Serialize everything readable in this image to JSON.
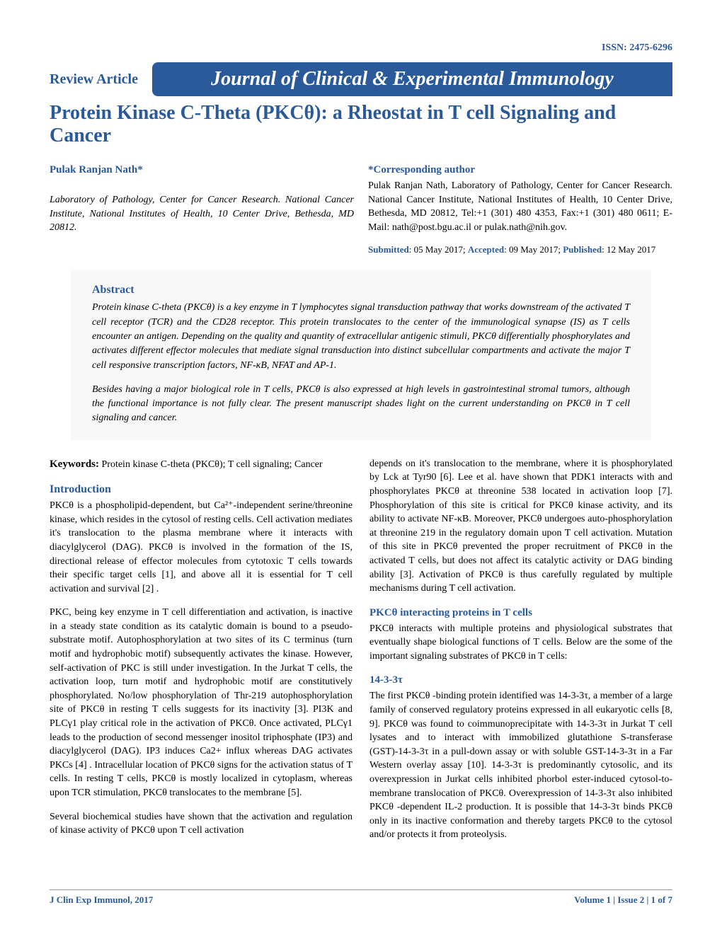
{
  "issn": "ISSN: 2475-6296",
  "article_type": "Review Article",
  "journal_name": "Journal of Clinical & Experimental Immunology",
  "title": "Protein Kinase C-Theta (PKCθ): a Rheostat in T cell Signaling and Cancer",
  "author": "Pulak Ranjan Nath*",
  "affiliation": "Laboratory of Pathology, Center for Cancer Research. National Cancer Institute, National Institutes of Health, 10 Center Drive, Bethesda, MD 20812.",
  "corresponding": {
    "header": "*Corresponding author",
    "text": "Pulak Ranjan Nath, Laboratory of Pathology, Center for Cancer Research. National Cancer Institute, National Institutes of Health, 10 Center Drive, Bethesda, MD 20812, Tel:+1 (301) 480 4353, Fax:+1 (301) 480 0611; E-Mail: nath@post.bgu.ac.il or pulak.nath@nih.gov."
  },
  "dates": {
    "submitted_label": "Submitted",
    "submitted": ": 05 May 2017; ",
    "accepted_label": "Accepted",
    "accepted": ": 09 May 2017; ",
    "published_label": "Published",
    "published": ": 12 May 2017"
  },
  "abstract": {
    "header": "Abstract",
    "p1": "Protein kinase C-theta (PKCθ) is a key enzyme in T lymphocytes signal transduction pathway that works downstream of the activated T cell receptor (TCR) and the CD28 receptor. This protein translocates to the center of the immunological synapse (IS) as T cells encounter an antigen. Depending on the quality and quantity of extracellular antigenic stimuli, PKCθ differentially phosphorylates and activates different effector molecules that mediate signal transduction into distinct subcellular compartments and activate the major T cell responsive transcription factors, NF-κB, NFAT and AP-1.",
    "p2": "Besides having a major biological role in T cells, PKCθ is also expressed at high levels in gastrointestinal stromal tumors, although the functional importance is not fully clear. The present manuscript shades light on the current understanding on PKCθ in T cell signaling and cancer."
  },
  "keywords": {
    "label": "Keywords:",
    "text": " Protein kinase C-theta (PKCθ); T cell signaling; Cancer"
  },
  "col1": {
    "intro_header": "Introduction",
    "p1": "PKCθ is a phospholipid-dependent, but Ca²⁺-independent serine/threonine kinase, which resides in the cytosol of resting cells. Cell activation mediates it's translocation to the plasma membrane where it interacts with diacylglycerol (DAG). PKCθ is involved in the formation of the IS, directional release of effector molecules from cytotoxic T cells towards their specific target cells [1], and above all it is essential for T cell activation and survival  [2] .",
    "p2": "PKC, being key enzyme in T cell differentiation and activation, is inactive in a steady state condition as its catalytic domain is bound to a pseudo-substrate motif. Autophosphorylation at two sites of its C terminus (turn motif and hydrophobic motif) subsequently activates the kinase. However, self-activation of PKC is still under investigation. In the Jurkat T cells, the activation loop, turn motif and hydrophobic motif are constitutively phosphorylated. No/low phosphorylation of Thr-219 autophosphorylation site of PKCθ in resting T cells suggests for its inactivity [3]. PI3K and PLCγ1 play critical role in the activation of PKCθ. Once activated, PLCγ1 leads to the production of second messenger inositol triphosphate (IP3) and diacylglycerol (DAG). IP3 induces Ca2+ influx whereas DAG activates PKCs [4] . Intracellular location of PKCθ signs for the activation status of T cells. In resting T cells, PKCθ is mostly localized in cytoplasm, whereas upon TCR stimulation, PKCθ translocates to the membrane [5].",
    "p3": "Several biochemical studies have shown that the activation and regulation of kinase activity of PKCθ upon T cell activation"
  },
  "col2": {
    "p1": "depends on it's translocation to the membrane, where it is phosphorylated by Lck at Tyr90 [6]. Lee et al. have shown that PDK1 interacts with and phosphorylates PKCθ at threonine 538 located in activation loop [7]. Phosphorylation of this site is critical for PKCθ kinase activity, and its ability to activate NF-κB. Moreover, PKCθ undergoes auto-phosphorylation at threonine 219 in the regulatory domain upon T cell activation. Mutation of this site in PKCθ prevented the proper recruitment of PKCθ in the activated T cells, but does not affect its catalytic activity or DAG binding ability [3]. Activation of PKCθ is thus carefully regulated by multiple mechanisms during T cell activation.",
    "sub1_header": "PKCθ interacting proteins in T cells",
    "sub1_text": "PKCθ interacts with multiple proteins and physiological substrates that eventually shape biological functions of T cells. Below are the some of the important signaling substrates of PKCθ in T cells:",
    "sub2_header": "14-3-3τ",
    "sub2_text": "The first PKCθ -binding protein identified was 14-3-3τ, a member of a large family of conserved regulatory proteins expressed in all eukaryotic cells [8, 9]. PKCθ was found to coimmunoprecipitate with 14-3-3τ in Jurkat T cell lysates and to interact with immobilized glutathione S-transferase (GST)-14-3-3τ in a pull-down assay or with soluble GST-14-3-3τ in a Far Western overlay assay  [10]. 14-3-3τ is predominantly cytosolic, and its overexpression in Jurkat cells inhibited phorbol ester-induced cytosol-to-membrane translocation of PKCθ. Overexpression of 14-3-3τ also inhibited PKCθ -dependent IL-2 production. It is possible that 14-3-3τ binds PKCθ only in its inactive conformation and thereby targets PKCθ to the cytosol and/or protects it from proteolysis."
  },
  "footer": {
    "left": "J Clin Exp Immunol, 2017",
    "right": "Volume 1 | Issue 2 | 1 of 7"
  },
  "colors": {
    "primary": "#2a5a9a",
    "background": "#ffffff",
    "abstract_bg": "#f8f8f8"
  }
}
